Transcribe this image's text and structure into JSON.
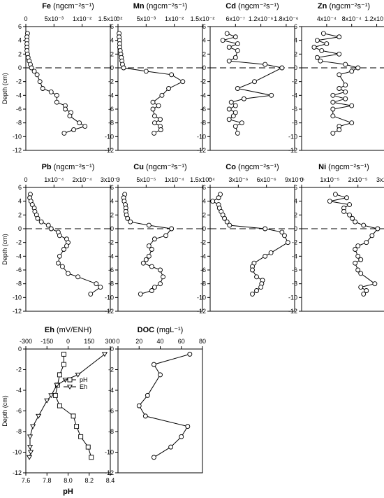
{
  "style": {
    "line_color": "#000000",
    "marker_fill": "#ffffff",
    "zero_line": "dashed"
  },
  "chart_data": [
    {
      "type": "line",
      "element": "Fe",
      "unit": "(ngcm⁻²s⁻¹)",
      "xlim": [
        0,
        0.015
      ],
      "ylim": [
        -12,
        6
      ],
      "xticks": [
        "0",
        "5x10⁻³",
        "1x10⁻²",
        "1.5x10⁻²"
      ],
      "yticks": [
        "-12",
        "-10",
        "-8",
        "-6",
        "-4",
        "-2",
        "0",
        "2",
        "4",
        "6"
      ],
      "ylabel": "Depth (cm)",
      "series": [
        {
          "marker": "circle",
          "x": [
            0.0003,
            0.0002,
            0.0002,
            0.0002,
            0.0002,
            0.0002,
            0.0003,
            0.0004,
            0.0006,
            0.0008,
            0.001,
            0.0015,
            0.002,
            0.0025,
            0.003,
            0.0045,
            0.0055,
            0.0055,
            0.007,
            0.007,
            0.008,
            0.0078,
            0.0095,
            0.0105,
            0.0085,
            0.0068
          ],
          "y": [
            5,
            4.5,
            4,
            3.5,
            3,
            2.5,
            2,
            1.5,
            1,
            0.5,
            0,
            -0.5,
            -1,
            -2,
            -3,
            -3.5,
            -4,
            -5,
            -5.5,
            -6,
            -6.5,
            -7,
            -8,
            -8.5,
            -9,
            -9.5
          ]
        }
      ]
    },
    {
      "type": "line",
      "element": "Mn",
      "unit": "(ngcm⁻²s⁻¹)",
      "xlim": [
        0,
        0.015
      ],
      "ylim": [
        -12,
        6
      ],
      "xticks": [
        "0",
        "5x10⁻³",
        "1x10⁻²",
        "1.5x10⁻²"
      ],
      "yticks": [
        "-12",
        "-10",
        "-8",
        "-6",
        "-4",
        "-2",
        "0",
        "2",
        "4",
        "6"
      ],
      "series": [
        {
          "marker": "circle",
          "x": [
            0.0002,
            0.0002,
            0.0003,
            0.0003,
            0.0003,
            0.0004,
            0.0005,
            0.0006,
            0.0007,
            0.0008,
            0.001,
            0.005,
            0.0095,
            0.0115,
            0.009,
            0.0078,
            0.0062,
            0.0072,
            0.0062,
            0.0065,
            0.0075,
            0.0065,
            0.0075,
            0.0076,
            0.0064
          ],
          "y": [
            5,
            4.5,
            4,
            3.5,
            3,
            2.5,
            2,
            1.5,
            1,
            0.5,
            0,
            -0.5,
            -1,
            -2,
            -3,
            -4,
            -5,
            -5.5,
            -6,
            -7,
            -7.5,
            -8,
            -8.5,
            -9,
            -9.5
          ]
        }
      ]
    },
    {
      "type": "line",
      "element": "Cd",
      "unit": "(ngcm⁻²s⁻¹)",
      "xlim": [
        0,
        2e-06
      ],
      "ylim": [
        -12,
        6
      ],
      "xticks": [
        "6x10⁻⁷",
        "1.2x10⁻⁶",
        "1.8x10⁻⁶"
      ],
      "yticks": [
        "-12",
        "-10",
        "-8",
        "-6",
        "-4",
        "-2",
        "0",
        "2",
        "4",
        "6"
      ],
      "series": [
        {
          "marker": "circle",
          "x": [
            4e-07,
            6e-07,
            3e-07,
            6.5e-07,
            4.5e-07,
            6.5e-07,
            6e-07,
            4.5e-07,
            1.3e-06,
            1.7e-06,
            1.05e-06,
            6.5e-07,
            1.45e-06,
            8e-07,
            5e-07,
            6e-07,
            4.5e-07,
            6e-07,
            5.5e-07,
            4.5e-07,
            7.5e-07,
            6e-07,
            6.5e-07
          ],
          "y": [
            5,
            4.5,
            4,
            3.5,
            3,
            2.5,
            1.5,
            1,
            0.5,
            0,
            -2,
            -3,
            -4,
            -4.5,
            -5,
            -5.5,
            -6,
            -6.5,
            -7,
            -7.5,
            -8,
            -8.5,
            -9.5
          ]
        }
      ]
    },
    {
      "type": "line",
      "element": "Zn",
      "unit": "(ngcm⁻²s⁻¹)",
      "xlim": [
        0,
        0.00135
      ],
      "ylim": [
        -12,
        6
      ],
      "xticks": [
        "4x10⁻⁴",
        "8x10⁻⁴",
        "1.2x10⁻³"
      ],
      "yticks": [
        "-12",
        "-10",
        "-8",
        "-6",
        "-4",
        "-2",
        "0",
        "2",
        "4",
        "6"
      ],
      "series": [
        {
          "marker": "circle",
          "x": [
            0.00035,
            0.0006,
            0.00025,
            0.0004,
            0.0002,
            0.00032,
            0.0006,
            0.00025,
            0.0003,
            0.0007,
            0.0009,
            0.0008,
            0.0006,
            0.0007,
            0.0006,
            0.0007,
            0.0005,
            0.0007,
            0.0005,
            0.0008,
            0.0005,
            0.0005,
            0.0008,
            0.0006,
            0.0006,
            0.0005
          ],
          "y": [
            5,
            4.5,
            4,
            3.5,
            3,
            2.5,
            2,
            1.5,
            1,
            0.5,
            0,
            -0.5,
            -1,
            -2.5,
            -3,
            -3.5,
            -4,
            -4.5,
            -5,
            -5.5,
            -6,
            -7,
            -8,
            -8.5,
            -9,
            -9.5
          ]
        }
      ]
    },
    {
      "type": "line",
      "element": "Pb",
      "unit": "(ngcm⁻²s⁻¹)",
      "xlim": [
        0,
        0.0003
      ],
      "ylim": [
        -12,
        6
      ],
      "xticks": [
        "0",
        "1x10⁻⁴",
        "2x10⁻⁴",
        "3x10⁻⁴"
      ],
      "yticks": [
        "-12",
        "-10",
        "-8",
        "-6",
        "-4",
        "-2",
        "0",
        "2",
        "4",
        "6"
      ],
      "ylabel": "Depth (cm)",
      "series": [
        {
          "marker": "circle",
          "x": [
            1.6e-05,
            1.4e-05,
            1.8e-05,
            2.3e-05,
            3e-05,
            3.2e-05,
            3.8e-05,
            4.2e-05,
            5.5e-05,
            8e-05,
            9e-05,
            0.000115,
            0.00012,
            0.000145,
            0.00015,
            0.000145,
            0.000135,
            0.00012,
            0.000115,
            0.00013,
            0.00015,
            0.000185,
            0.00025,
            0.000265,
            0.00023
          ],
          "y": [
            5,
            4.5,
            4,
            3.5,
            3,
            2.5,
            2,
            1.5,
            1,
            0.5,
            0,
            -0.5,
            -1,
            -1.5,
            -2,
            -2.5,
            -3,
            -4,
            -5,
            -5.5,
            -6.5,
            -7,
            -8,
            -8.5,
            -9.5
          ]
        }
      ]
    },
    {
      "type": "line",
      "element": "Cu",
      "unit": "(ngcm⁻²s⁻¹)",
      "xlim": [
        0,
        0.00015
      ],
      "ylim": [
        -12,
        6
      ],
      "xticks": [
        "0",
        "5x10⁻⁵",
        "1x10⁻⁴",
        "1.5x10⁻⁴"
      ],
      "yticks": [
        "-12",
        "-10",
        "-8",
        "-6",
        "-4",
        "-2",
        "0",
        "2",
        "4",
        "6"
      ],
      "series": [
        {
          "marker": "circle",
          "x": [
            1.2e-05,
            1e-05,
            1.1e-05,
            1.3e-05,
            1.4e-05,
            1.4e-05,
            1.5e-05,
            1.7e-05,
            2.2e-05,
            5.5e-05,
            9.5e-05,
            8.5e-05,
            6.5e-05,
            5.5e-05,
            6e-05,
            5.5e-05,
            5e-05,
            4.5e-05,
            6e-05,
            7.5e-05,
            8e-05,
            7.5e-05,
            6.5e-05,
            6e-05,
            4e-05
          ],
          "y": [
            5,
            4.5,
            4,
            3.5,
            3,
            2.5,
            2,
            1.5,
            1,
            0.5,
            0,
            -1,
            -1.5,
            -2.5,
            -3,
            -4,
            -4.5,
            -5,
            -5.5,
            -6,
            -7,
            -8,
            -8.5,
            -9,
            -9.5
          ]
        }
      ]
    },
    {
      "type": "line",
      "element": "Co",
      "unit": "(ngcm⁻²s⁻¹)",
      "xlim": [
        0,
        1e-05
      ],
      "ylim": [
        -12,
        6
      ],
      "xticks": [
        "0",
        "3x10⁻⁶",
        "6x10⁻⁶",
        "9x10⁻⁶"
      ],
      "yticks": [
        "-12",
        "-10",
        "-8",
        "-6",
        "-4",
        "-2",
        "0",
        "2",
        "4",
        "6"
      ],
      "series": [
        {
          "marker": "circle",
          "x": [
            1.2e-06,
            1e-06,
            3e-07,
            1e-06,
            1.1e-06,
            1.3e-06,
            1.5e-06,
            1.7e-06,
            2e-06,
            2.3e-06,
            6.5e-06,
            8.5e-06,
            8.8e-06,
            9.2e-06,
            7.2e-06,
            6.5e-06,
            5.2e-06,
            5e-06,
            5e-06,
            5.5e-06,
            6.2e-06,
            6.1e-06,
            6e-06,
            5.5e-06,
            5e-06
          ],
          "y": [
            5,
            4.5,
            4,
            3.5,
            3,
            2.5,
            2,
            1.5,
            1,
            0.5,
            0,
            -0.5,
            -1,
            -2,
            -3.5,
            -4,
            -5,
            -5.5,
            -6,
            -7,
            -7.5,
            -8,
            -8.5,
            -9,
            -9.5
          ]
        }
      ]
    },
    {
      "type": "line",
      "element": "Ni",
      "unit": "(ngcm⁻²s⁻¹)",
      "xlim": [
        0,
        3e-05
      ],
      "ylim": [
        -12,
        6
      ],
      "xticks": [
        "0",
        "1x10⁻⁵",
        "2x10⁻⁵",
        "3x10⁻⁵"
      ],
      "yticks": [
        "-12",
        "-10",
        "-8",
        "-6",
        "-4",
        "-2",
        "0",
        "2",
        "4",
        "6"
      ],
      "series": [
        {
          "marker": "circle",
          "x": [
            1.2e-05,
            1.6e-05,
            1e-05,
            1.7e-05,
            1.5e-05,
            1.5e-05,
            1.7e-05,
            1.8e-05,
            1.9e-05,
            2.2e-05,
            2.7e-05,
            2.5e-05,
            2.3e-05,
            2e-05,
            1.9e-05,
            2e-05,
            2.1e-05,
            1.9e-05,
            2e-05,
            2.1e-05,
            2.6e-05,
            2.1e-05,
            2.3e-05,
            2.2e-05
          ],
          "y": [
            5,
            4.5,
            4,
            3.5,
            3,
            2.5,
            2,
            1.5,
            1,
            0.5,
            0,
            -1,
            -2,
            -2.5,
            -3,
            -4,
            -4.5,
            -5,
            -6,
            -6.5,
            -8,
            -8.5,
            -9,
            -9.5
          ]
        }
      ]
    },
    {
      "type": "line",
      "element": "Eh",
      "unit": "(mV/ENH)",
      "x2label": "pH",
      "xlim_top": [
        -300,
        300
      ],
      "xlim_bottom": [
        7.6,
        8.4
      ],
      "ylim": [
        -12,
        0
      ],
      "xticks_top": [
        "-300",
        "-150",
        "0",
        "150",
        "300"
      ],
      "xticks_bottom": [
        "7.6",
        "7.8",
        "8.0",
        "8.2",
        "8.4"
      ],
      "yticks": [
        "-12",
        "-10",
        "-8",
        "-6",
        "-4",
        "-2",
        "0"
      ],
      "ylabel": "Depth (cm)",
      "legend": "right",
      "series": [
        {
          "name": "pH",
          "marker": "square",
          "axis": "bottom",
          "x": [
            7.96,
            7.96,
            7.92,
            7.9,
            7.88,
            7.92,
            8.05,
            8.08,
            8.12,
            8.19,
            8.22
          ],
          "y": [
            -0.5,
            -1.5,
            -2.5,
            -3.5,
            -4.5,
            -5.5,
            -6.5,
            -7.5,
            -8.5,
            -9.5,
            -10.5
          ]
        },
        {
          "name": "Eh",
          "marker": "triangle",
          "axis": "top",
          "x": [
            260,
            70,
            -20,
            -80,
            -120,
            -150,
            -210,
            -250,
            -270,
            -270,
            -265,
            -275
          ],
          "y": [
            -0.5,
            -2.5,
            -3,
            -3.5,
            -4.5,
            -5,
            -6.5,
            -7.5,
            -8.5,
            -9.5,
            -10,
            -10.5
          ]
        }
      ]
    },
    {
      "type": "line",
      "element": "DOC",
      "unit": "(mgL⁻¹)",
      "xlim": [
        0,
        80
      ],
      "ylim": [
        -12,
        0
      ],
      "xticks": [
        "0",
        "20",
        "40",
        "60",
        "80"
      ],
      "yticks": [
        "-12",
        "-10",
        "-8",
        "-6",
        "-4",
        "-2",
        "0"
      ],
      "series": [
        {
          "marker": "circle",
          "x": [
            68,
            34,
            40,
            28,
            20,
            26,
            66,
            60,
            50,
            34
          ],
          "y": [
            -0.5,
            -1.5,
            -2.5,
            -4.5,
            -5.5,
            -6.5,
            -7.5,
            -8.5,
            -9.5,
            -10.5
          ]
        }
      ]
    }
  ]
}
